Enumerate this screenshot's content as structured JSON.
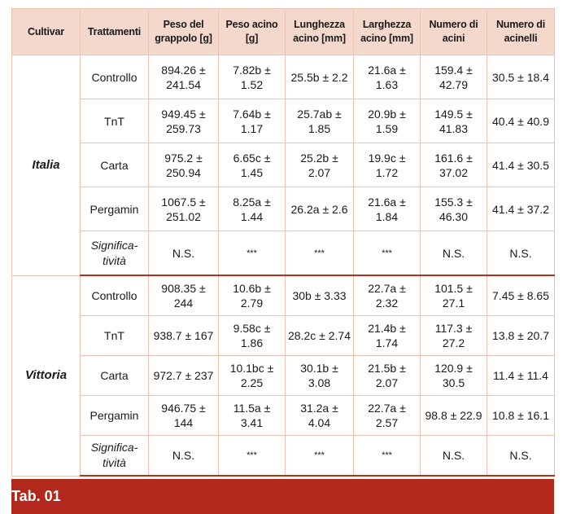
{
  "headers": [
    "Cultivar",
    "Trattamenti",
    "Peso del grappolo [g]",
    "Peso acino [g]",
    "Lunghezza acino [mm]",
    "Larghezza acino [mm]",
    "Numero di acini",
    "Numero di acinelli"
  ],
  "groups": [
    {
      "cultivar": "Italia",
      "rows": [
        {
          "treatment": "Controllo",
          "values": [
            "894.26 ± 241.54",
            "7.82b ± 1.52",
            "25.5b ± 2.2",
            "21.6a ± 1.63",
            "159.4 ± 42.79",
            "30.5 ± 18.4"
          ]
        },
        {
          "treatment": "TnT",
          "values": [
            "949.45 ± 259.73",
            "7.64b ± 1.17",
            "25.7ab ± 1.85",
            "20.9b ± 1.59",
            "149.5 ± 41.83",
            "40.4 ± 40.9"
          ]
        },
        {
          "treatment": "Carta",
          "values": [
            "975.2 ± 250.94",
            "6.65c ± 1.45",
            "25.2b ± 2.07",
            "19.9c ± 1.72",
            "161.6 ± 37.02",
            "41.4 ± 30.5"
          ]
        },
        {
          "treatment": "Pergamin",
          "values": [
            "1067.5 ± 251.02",
            "8.25a ± 1.44",
            "26.2a ± 2.6",
            "21.6a ± 1.84",
            "155.3 ± 46.30",
            "41.4 ± 37.2"
          ]
        },
        {
          "treatment": "Significa-tività",
          "significance": true,
          "values": [
            "N.S.",
            "***",
            "***",
            "***",
            "N.S.",
            "N.S."
          ]
        }
      ]
    },
    {
      "cultivar": "Vittoria",
      "rows": [
        {
          "treatment": "Controllo",
          "values": [
            "908.35 ± 244",
            "10.6b ± 2.79",
            "30b ± 3.33",
            "22.7a ± 2.32",
            "101.5 ± 27.1",
            "7.45 ± 8.65"
          ]
        },
        {
          "treatment": "TnT",
          "values": [
            "938.7 ± 167",
            "9.58c ± 1.86",
            "28.2c ± 2.74",
            "21.4b ± 1.74",
            "117.3 ± 27.2",
            "13.8 ± 20.7"
          ]
        },
        {
          "treatment": "Carta",
          "values": [
            "972.7 ± 237",
            "10.1bc ± 2.25",
            "30.1b ± 3.08",
            "21.5b ± 2.07",
            "120.9 ± 30.5",
            "11.4 ± 11.4"
          ]
        },
        {
          "treatment": "Pergamin",
          "values": [
            "946.75 ± 144",
            "11.5a ± 3.41",
            "31.2a ± 4.04",
            "22.7a ± 2.57",
            "98.8 ± 22.9",
            "10.8 ± 16.1"
          ]
        },
        {
          "treatment": "Significa-tività",
          "significance": true,
          "values": [
            "N.S.",
            "***",
            "***",
            "***",
            "N.S.",
            "N.S."
          ]
        }
      ]
    }
  ],
  "caption": "Tab. 01"
}
